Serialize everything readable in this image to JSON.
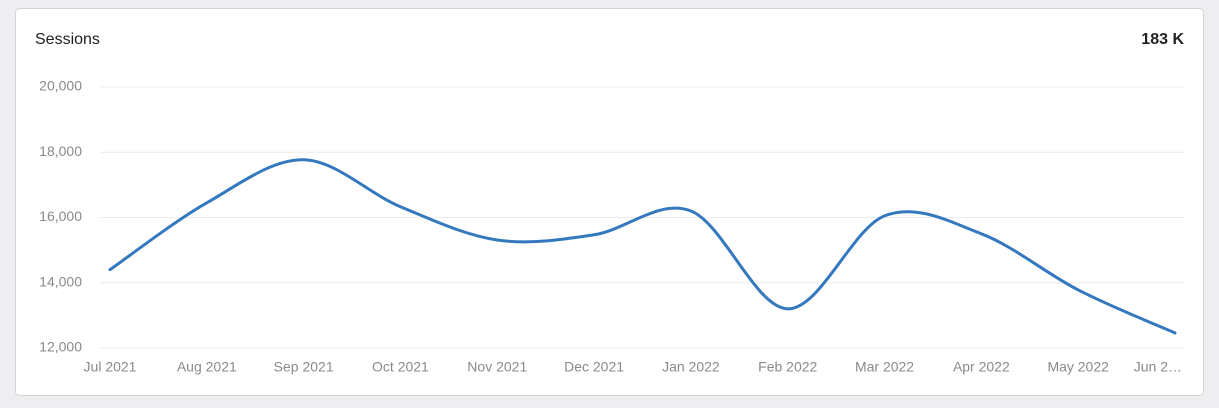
{
  "chart_data": {
    "type": "line",
    "title": "Sessions",
    "total": "183 K",
    "categories": [
      "Jul 2021",
      "Aug 2021",
      "Sep 2021",
      "Oct 2021",
      "Nov 2021",
      "Dec 2021",
      "Jan 2022",
      "Feb 2022",
      "Mar 2022",
      "Apr 2022",
      "May 2022",
      "Jun 2…"
    ],
    "series": [
      {
        "name": "Sessions",
        "color": "#3478bd",
        "values": [
          14400,
          16450,
          17770,
          16330,
          15310,
          15470,
          16200,
          13200,
          16050,
          15500,
          13780,
          12460
        ]
      }
    ],
    "ylim": [
      12000,
      20000
    ],
    "yticks": [
      {
        "value": 12000,
        "label": "12,000"
      },
      {
        "value": 14000,
        "label": "14,000"
      },
      {
        "value": 16000,
        "label": "16,000"
      },
      {
        "value": 18000,
        "label": "18,000"
      },
      {
        "value": 20000,
        "label": "20,000"
      }
    ],
    "grid": true
  }
}
